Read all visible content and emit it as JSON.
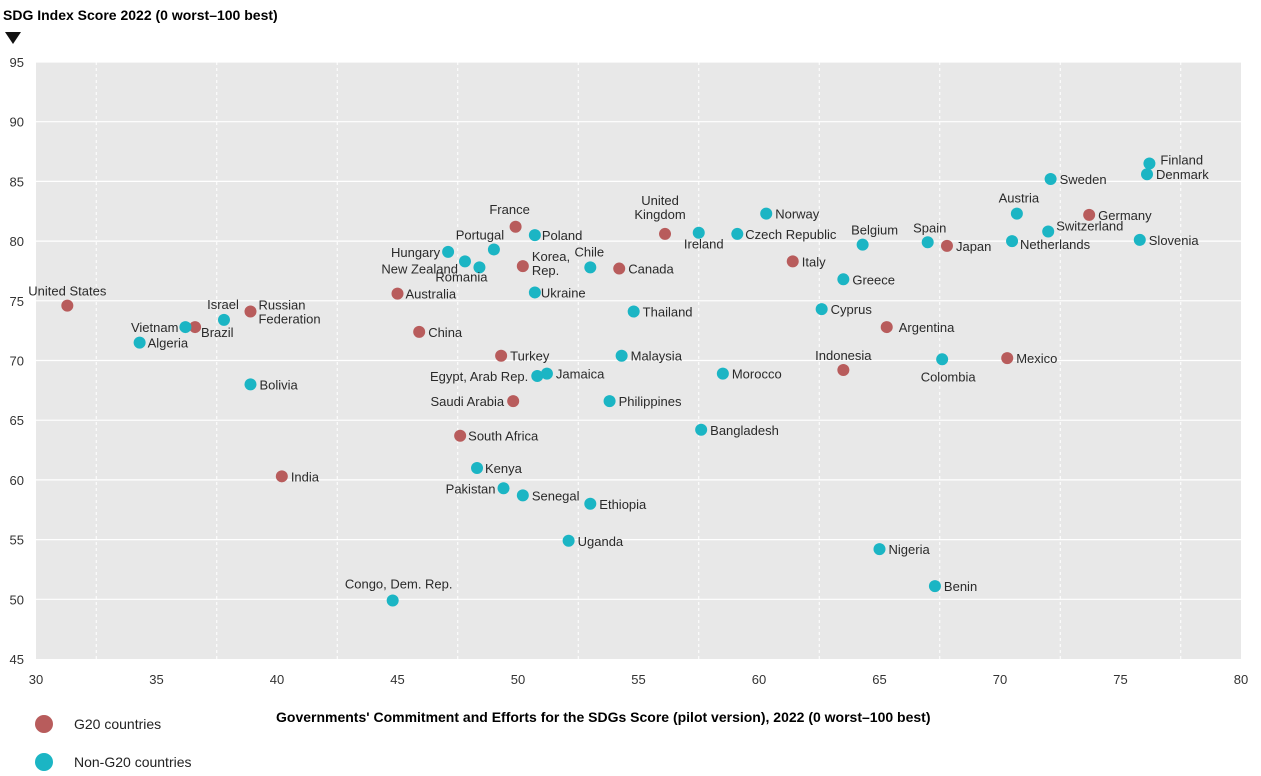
{
  "chart_data": {
    "type": "scatter",
    "title": "",
    "ylabel": "SDG Index Score 2022 (0 worst–100 best)",
    "xlabel": "Governments' Commitment and Efforts for the SDGs Score (pilot version), 2022 (0 worst–100 best)",
    "xlim": [
      30,
      80
    ],
    "ylim": [
      45,
      95
    ],
    "xticks": [
      "30",
      "35",
      "40",
      "45",
      "50",
      "55",
      "60",
      "65",
      "70",
      "75",
      "80"
    ],
    "yticks": [
      "45",
      "50",
      "55",
      "60",
      "65",
      "70",
      "75",
      "80",
      "85",
      "90",
      "95"
    ],
    "grid": true,
    "legend_position": "bottom-left",
    "colors": {
      "g20": "#b85c5c",
      "non_g20": "#1bb5c4",
      "plot_bg": "#e8e8e8"
    },
    "series": [
      {
        "name": "G20 countries",
        "key": "g20",
        "points": [
          {
            "label": "United States",
            "x": 31.3,
            "y": 74.6
          },
          {
            "label": "Brazil",
            "x": 36.6,
            "y": 72.8
          },
          {
            "label": "Russian Federation",
            "x": 38.9,
            "y": 74.1
          },
          {
            "label": "India",
            "x": 40.2,
            "y": 60.3
          },
          {
            "label": "Australia",
            "x": 45.0,
            "y": 75.6
          },
          {
            "label": "China",
            "x": 45.9,
            "y": 72.4
          },
          {
            "label": "South Africa",
            "x": 47.6,
            "y": 63.7
          },
          {
            "label": "Turkey",
            "x": 49.3,
            "y": 70.4
          },
          {
            "label": "Saudi Arabia",
            "x": 49.8,
            "y": 66.6
          },
          {
            "label": "France",
            "x": 49.9,
            "y": 81.2
          },
          {
            "label": "Korea, Rep.",
            "x": 50.2,
            "y": 77.9
          },
          {
            "label": "Canada",
            "x": 54.2,
            "y": 77.7
          },
          {
            "label": "United Kingdom",
            "x": 56.1,
            "y": 80.6
          },
          {
            "label": "Italy",
            "x": 61.4,
            "y": 78.3
          },
          {
            "label": "Indonesia",
            "x": 63.5,
            "y": 69.2
          },
          {
            "label": "Argentina",
            "x": 65.3,
            "y": 72.8
          },
          {
            "label": "Japan",
            "x": 67.8,
            "y": 79.6
          },
          {
            "label": "Mexico",
            "x": 70.3,
            "y": 70.2
          },
          {
            "label": "Germany",
            "x": 73.7,
            "y": 82.2
          }
        ]
      },
      {
        "name": "Non-G20 countries",
        "key": "non_g20",
        "points": [
          {
            "label": "Algeria",
            "x": 34.3,
            "y": 71.5
          },
          {
            "label": "Vietnam",
            "x": 36.2,
            "y": 72.8
          },
          {
            "label": "Israel",
            "x": 37.8,
            "y": 73.4
          },
          {
            "label": "Bolivia",
            "x": 38.9,
            "y": 68.0
          },
          {
            "label": "Congo, Dem. Rep.",
            "x": 44.8,
            "y": 49.9
          },
          {
            "label": "Hungary",
            "x": 47.1,
            "y": 79.1
          },
          {
            "label": "New Zealand",
            "x": 47.8,
            "y": 78.3
          },
          {
            "label": "Kenya",
            "x": 48.3,
            "y": 61.0
          },
          {
            "label": "Romania",
            "x": 48.4,
            "y": 77.8
          },
          {
            "label": "Portugal",
            "x": 49.0,
            "y": 79.3
          },
          {
            "label": "Pakistan",
            "x": 49.4,
            "y": 59.3
          },
          {
            "label": "Senegal",
            "x": 50.2,
            "y": 58.7
          },
          {
            "label": "Poland",
            "x": 50.7,
            "y": 80.5
          },
          {
            "label": "Ukraine",
            "x": 50.7,
            "y": 75.7
          },
          {
            "label": "Egypt, Arab Rep.",
            "x": 50.8,
            "y": 68.7
          },
          {
            "label": "Jamaica",
            "x": 51.2,
            "y": 68.9
          },
          {
            "label": "Uganda",
            "x": 52.1,
            "y": 54.9
          },
          {
            "label": "Chile",
            "x": 53.0,
            "y": 77.8
          },
          {
            "label": "Ethiopia",
            "x": 53.0,
            "y": 58.0
          },
          {
            "label": "Philippines",
            "x": 53.8,
            "y": 66.6
          },
          {
            "label": "Malaysia",
            "x": 54.3,
            "y": 70.4
          },
          {
            "label": "Thailand",
            "x": 54.8,
            "y": 74.1
          },
          {
            "label": "Ireland",
            "x": 57.5,
            "y": 80.7
          },
          {
            "label": "Bangladesh",
            "x": 57.6,
            "y": 64.2
          },
          {
            "label": "Morocco",
            "x": 58.5,
            "y": 68.9
          },
          {
            "label": "Czech Republic",
            "x": 59.1,
            "y": 80.6
          },
          {
            "label": "Norway",
            "x": 60.3,
            "y": 82.3
          },
          {
            "label": "Cyprus",
            "x": 62.6,
            "y": 74.3
          },
          {
            "label": "Greece",
            "x": 63.5,
            "y": 76.8
          },
          {
            "label": "Nigeria",
            "x": 65.0,
            "y": 54.2
          },
          {
            "label": "Belgium",
            "x": 64.3,
            "y": 79.7
          },
          {
            "label": "Spain",
            "x": 67.0,
            "y": 79.9
          },
          {
            "label": "Benin",
            "x": 67.3,
            "y": 51.1
          },
          {
            "label": "Colombia",
            "x": 67.6,
            "y": 70.1
          },
          {
            "label": "Netherlands",
            "x": 70.5,
            "y": 80.0
          },
          {
            "label": "Austria",
            "x": 70.7,
            "y": 82.3
          },
          {
            "label": "Switzerland",
            "x": 72.0,
            "y": 80.8
          },
          {
            "label": "Sweden",
            "x": 72.1,
            "y": 85.2
          },
          {
            "label": "Slovenia",
            "x": 75.8,
            "y": 80.1
          },
          {
            "label": "Denmark",
            "x": 76.1,
            "y": 85.6
          },
          {
            "label": "Finland",
            "x": 76.2,
            "y": 86.5
          }
        ]
      }
    ]
  }
}
